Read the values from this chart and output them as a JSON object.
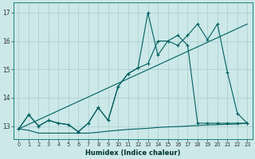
{
  "xlabel": "Humidex (Indice chaleur)",
  "bg_color": "#cce8e8",
  "grid_color": "#aacccc",
  "line_color": "#006060",
  "xlim": [
    -0.5,
    23.5
  ],
  "ylim": [
    12.55,
    17.35
  ],
  "yticks": [
    13,
    14,
    15,
    16,
    17
  ],
  "xticks": [
    0,
    1,
    2,
    3,
    4,
    5,
    6,
    7,
    8,
    9,
    10,
    11,
    12,
    13,
    14,
    15,
    16,
    17,
    18,
    19,
    20,
    21,
    22,
    23
  ],
  "line_flat_x": [
    0,
    1,
    2,
    3,
    4,
    5,
    6,
    7,
    8,
    9,
    10,
    11,
    12,
    13,
    14,
    15,
    16,
    17,
    18,
    19,
    20,
    21,
    22,
    23
  ],
  "line_flat_y": [
    12.9,
    12.85,
    12.75,
    12.75,
    12.75,
    12.75,
    12.75,
    12.75,
    12.78,
    12.82,
    12.85,
    12.88,
    12.9,
    12.92,
    12.95,
    12.97,
    12.98,
    13.0,
    13.02,
    13.04,
    13.05,
    13.06,
    13.07,
    13.1
  ],
  "line_trend_x": [
    0,
    23
  ],
  "line_trend_y": [
    12.9,
    16.6
  ],
  "line_a_x": [
    0,
    1,
    2,
    3,
    4,
    5,
    6,
    7,
    8,
    9,
    10,
    11,
    12,
    13,
    14,
    15,
    16,
    17,
    18,
    19,
    20,
    21,
    22,
    23
  ],
  "line_a_y": [
    12.9,
    13.4,
    13.0,
    13.2,
    13.1,
    13.05,
    12.8,
    13.1,
    13.65,
    13.2,
    14.4,
    14.85,
    15.05,
    15.2,
    16.0,
    16.0,
    16.2,
    15.85,
    13.1,
    13.1,
    13.1,
    13.1,
    13.1,
    13.1
  ],
  "line_b_x": [
    0,
    1,
    2,
    3,
    4,
    5,
    6,
    7,
    8,
    9,
    10,
    11,
    12,
    13,
    14,
    15,
    16,
    17,
    18,
    19,
    20,
    21,
    22,
    23
  ],
  "line_b_y": [
    12.9,
    13.4,
    13.0,
    13.2,
    13.1,
    13.05,
    12.8,
    13.1,
    13.65,
    13.2,
    14.4,
    14.85,
    15.05,
    17.0,
    15.5,
    16.0,
    15.85,
    16.2,
    16.6,
    16.05,
    16.6,
    14.9,
    13.45,
    13.1
  ]
}
